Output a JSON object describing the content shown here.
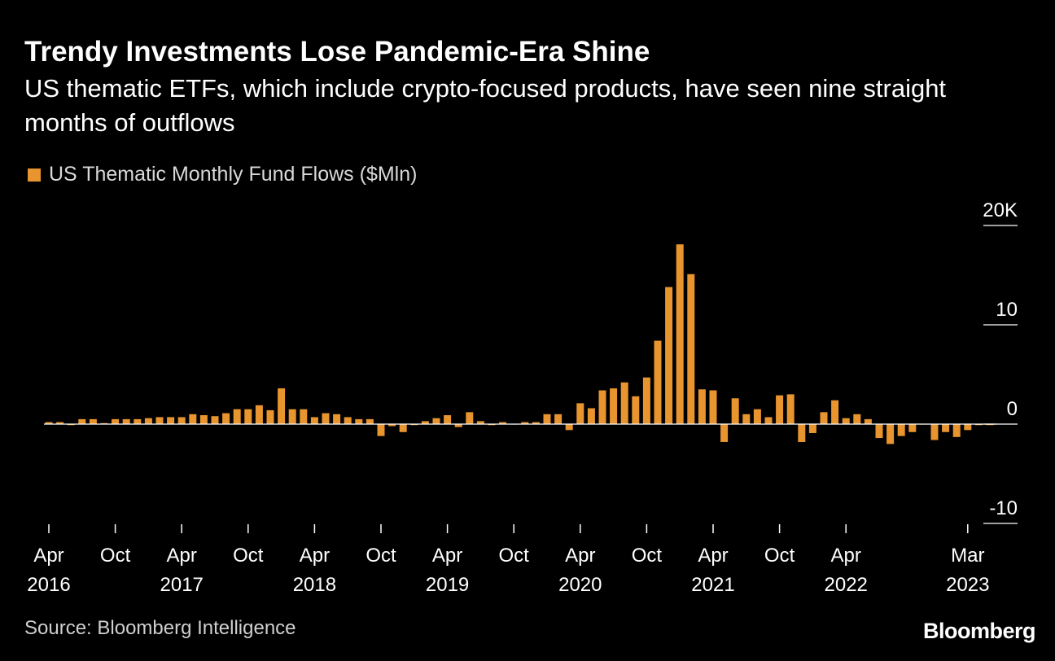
{
  "header": {
    "title": "Trendy Investments Lose Pandemic-Era Shine",
    "subtitle": "US thematic ETFs, which include crypto-focused products, have seen nine straight months of outflows"
  },
  "legend": {
    "label": "US Thematic Monthly Fund Flows ($Mln)"
  },
  "footer": {
    "source": "Source: Bloomberg Intelligence",
    "brand": "Bloomberg"
  },
  "colors": {
    "bar": "#e8952f",
    "background": "#000000",
    "axis": "#ffffff",
    "tick_text": "#ffffff"
  },
  "chart_data": {
    "type": "bar",
    "series": [
      {
        "name": "US Thematic Monthly Fund Flows ($Mln)",
        "start": "2016-04",
        "values": [
          0.2,
          0.2,
          -0.1,
          0.5,
          0.5,
          0.1,
          0.5,
          0.5,
          0.5,
          0.6,
          0.7,
          0.7,
          0.7,
          1.0,
          0.9,
          0.8,
          1.1,
          1.5,
          1.5,
          1.9,
          1.4,
          3.6,
          1.5,
          1.5,
          0.7,
          1.1,
          1.0,
          0.7,
          0.5,
          0.5,
          -1.2,
          -0.2,
          -0.8,
          -0.1,
          0.3,
          0.6,
          0.9,
          -0.3,
          1.2,
          0.3,
          -0.1,
          0.2,
          0.0,
          0.2,
          0.2,
          1.0,
          1.0,
          -0.6,
          2.1,
          1.6,
          3.4,
          3.6,
          4.2,
          2.8,
          4.7,
          8.4,
          13.8,
          18.1,
          15.1,
          3.5,
          3.4,
          -1.8,
          2.6,
          1.0,
          1.5,
          0.7,
          2.9,
          3.0,
          -1.8,
          -0.9,
          1.2,
          2.4,
          0.6,
          1.0,
          0.5,
          -1.4,
          -2.0,
          -1.2,
          -0.8,
          0.0,
          -1.6,
          -0.8,
          -1.3,
          -0.6,
          -0.1,
          -0.1
        ]
      }
    ],
    "y_axis": {
      "min": -10,
      "max": 20,
      "ticks": [
        {
          "value": 20,
          "label": "20K"
        },
        {
          "value": 10,
          "label": "10"
        },
        {
          "value": 0,
          "label": "0"
        },
        {
          "value": -10,
          "label": "-10"
        }
      ]
    },
    "x_ticks": [
      {
        "month": "2016-04",
        "label1": "Apr",
        "label2": "2016"
      },
      {
        "month": "2016-10",
        "label1": "Oct",
        "label2": ""
      },
      {
        "month": "2017-04",
        "label1": "Apr",
        "label2": "2017"
      },
      {
        "month": "2017-10",
        "label1": "Oct",
        "label2": ""
      },
      {
        "month": "2018-04",
        "label1": "Apr",
        "label2": "2018"
      },
      {
        "month": "2018-10",
        "label1": "Oct",
        "label2": ""
      },
      {
        "month": "2019-04",
        "label1": "Apr",
        "label2": "2019"
      },
      {
        "month": "2019-10",
        "label1": "Oct",
        "label2": ""
      },
      {
        "month": "2020-04",
        "label1": "Apr",
        "label2": "2020"
      },
      {
        "month": "2020-10",
        "label1": "Oct",
        "label2": ""
      },
      {
        "month": "2021-04",
        "label1": "Apr",
        "label2": "2021"
      },
      {
        "month": "2021-10",
        "label1": "Oct",
        "label2": ""
      },
      {
        "month": "2022-04",
        "label1": "Apr",
        "label2": "2022"
      },
      {
        "month": "2023-03",
        "label1": "Mar",
        "label2": "2023"
      }
    ]
  }
}
